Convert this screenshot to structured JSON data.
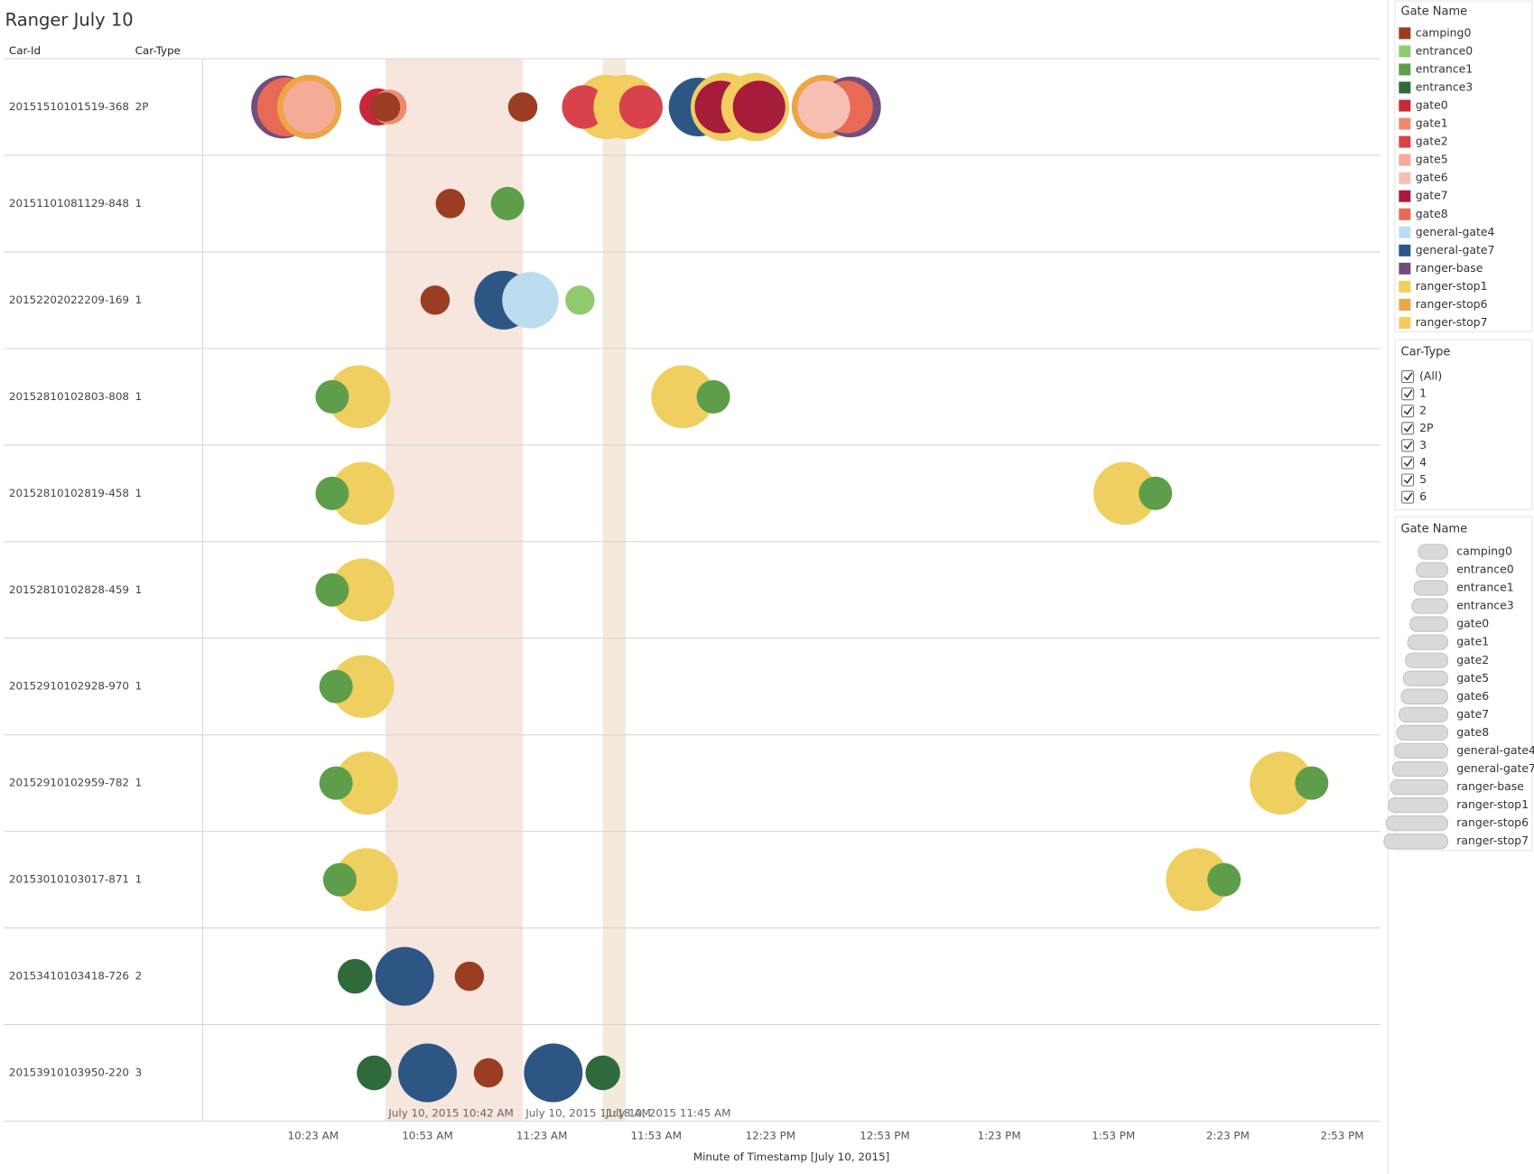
{
  "chart_data": {
    "type": "scatter",
    "title": "Ranger July 10",
    "row_headers": [
      "Car-Id",
      "Car-Type"
    ],
    "x_label": "Minute of Timestamp [July 10, 2015]",
    "xlim": [
      594,
      903
    ],
    "xticks": [
      {
        "value": 623,
        "label": "10:23 AM"
      },
      {
        "value": 653,
        "label": "10:53 AM"
      },
      {
        "value": 683,
        "label": "11:23 AM"
      },
      {
        "value": 713,
        "label": "11:53 AM"
      },
      {
        "value": 743,
        "label": "12:23 PM"
      },
      {
        "value": 773,
        "label": "12:53 PM"
      },
      {
        "value": 803,
        "label": "1:23 PM"
      },
      {
        "value": 833,
        "label": "1:53 PM"
      },
      {
        "value": 863,
        "label": "2:23 PM"
      },
      {
        "value": 893,
        "label": "2:53 PM"
      }
    ],
    "reference_bands": [
      {
        "start": 642,
        "end": 678,
        "color": "#f6e6dd",
        "label": "July 10, 2015 10:42 AM",
        "end_label": "July 10, 2015 11:18 AM"
      },
      {
        "start": 699,
        "end": 705,
        "color": "#f3eadb",
        "label": "July 10, 2015 11:45 AM"
      }
    ],
    "legend_title": "Gate Name",
    "series": [
      {
        "name": "camping0",
        "color": "#9b3d22"
      },
      {
        "name": "entrance0",
        "color": "#8fcb6e"
      },
      {
        "name": "entrance1",
        "color": "#5e9e4b"
      },
      {
        "name": "entrance3",
        "color": "#2f6b3a"
      },
      {
        "name": "gate0",
        "color": "#c8283a"
      },
      {
        "name": "gate1",
        "color": "#ee8a6e"
      },
      {
        "name": "gate2",
        "color": "#d9424a"
      },
      {
        "name": "gate5",
        "color": "#f4ab98"
      },
      {
        "name": "gate6",
        "color": "#f7bfb3"
      },
      {
        "name": "gate7",
        "color": "#a71b3b"
      },
      {
        "name": "gate8",
        "color": "#e86a55"
      },
      {
        "name": "general-gate4",
        "color": "#bcdcf0"
      },
      {
        "name": "general-gate7",
        "color": "#2e5685"
      },
      {
        "name": "ranger-base",
        "color": "#724e7e"
      },
      {
        "name": "ranger-stop1",
        "color": "#efcf5f"
      },
      {
        "name": "ranger-stop6",
        "color": "#eda546"
      },
      {
        "name": "ranger-stop7",
        "color": "#f3cd60"
      }
    ],
    "rows": [
      {
        "car_id": "20151510101519-368",
        "car_type": "2P",
        "x": [
          615,
          616,
          622,
          622,
          640,
          643,
          642,
          678,
          700,
          694,
          705,
          709,
          724,
          731,
          730,
          739,
          740,
          757,
          764,
          763,
          757
        ],
        "gate": [
          "ranger-base",
          "gate8",
          "ranger-stop6",
          "gate5",
          "gate0",
          "gate1",
          "camping0",
          "camping0",
          "ranger-stop1",
          "gate2",
          "ranger-stop7",
          "gate2",
          "general-gate7",
          "ranger-stop1",
          "gate7",
          "ranger-stop7",
          "gate7",
          "ranger-stop6",
          "ranger-base",
          "gate8",
          "gate6"
        ],
        "size": [
          4.6,
          4,
          4.8,
          3.2,
          1.6,
          1.4,
          1,
          1,
          4.8,
          2.2,
          4.8,
          2.2,
          4,
          5.4,
          3.2,
          5.4,
          3.2,
          4.8,
          4.3,
          3.2,
          3.2
        ]
      },
      {
        "car_id": "20151101081129-848",
        "car_type": "1",
        "x": [
          659,
          674
        ],
        "gate": [
          "camping0",
          "entrance1"
        ],
        "size": [
          1,
          1.3
        ]
      },
      {
        "car_id": "20152202022209-169",
        "car_type": "1",
        "x": [
          655,
          673,
          680,
          693
        ],
        "gate": [
          "camping0",
          "general-gate7",
          "general-gate4",
          "entrance0"
        ],
        "size": [
          1,
          4,
          3.7,
          1
        ]
      },
      {
        "car_id": "20152810102803-808",
        "car_type": "1",
        "x": [
          635,
          628,
          720,
          728
        ],
        "gate": [
          "ranger-stop1",
          "entrance1",
          "ranger-stop1",
          "entrance1"
        ],
        "size": [
          4.6,
          1.3,
          4.6,
          1.3
        ]
      },
      {
        "car_id": "20152810102819-458",
        "car_type": "1",
        "x": [
          636,
          628,
          836,
          844
        ],
        "gate": [
          "ranger-stop1",
          "entrance1",
          "ranger-stop1",
          "entrance1"
        ],
        "size": [
          4.6,
          1.3,
          4.6,
          1.3
        ]
      },
      {
        "car_id": "20152810102828-459",
        "car_type": "1",
        "x": [
          636,
          628
        ],
        "gate": [
          "ranger-stop1",
          "entrance1"
        ],
        "size": [
          4.6,
          1.3
        ]
      },
      {
        "car_id": "20152910102928-970",
        "car_type": "1",
        "x": [
          636,
          629
        ],
        "gate": [
          "ranger-stop1",
          "entrance1"
        ],
        "size": [
          4.6,
          1.3
        ]
      },
      {
        "car_id": "20152910102959-782",
        "car_type": "1",
        "x": [
          637,
          629,
          877,
          885
        ],
        "gate": [
          "ranger-stop1",
          "entrance1",
          "ranger-stop1",
          "entrance1"
        ],
        "size": [
          4.6,
          1.3,
          4.6,
          1.3
        ]
      },
      {
        "car_id": "20153010103017-871",
        "car_type": "1",
        "x": [
          637,
          630,
          855,
          862
        ],
        "gate": [
          "ranger-stop1",
          "entrance1",
          "ranger-stop1",
          "entrance1"
        ],
        "size": [
          4.6,
          1.3,
          4.6,
          1.3
        ]
      },
      {
        "car_id": "20153410103418-726",
        "car_type": "2",
        "x": [
          634,
          647,
          664
        ],
        "gate": [
          "entrance3",
          "general-gate7",
          "camping0"
        ],
        "size": [
          1.4,
          4,
          1
        ]
      },
      {
        "car_id": "20153910103950-220",
        "car_type": "3",
        "x": [
          639,
          653,
          669,
          686,
          699
        ],
        "gate": [
          "entrance3",
          "general-gate7",
          "camping0",
          "general-gate7",
          "entrance3"
        ],
        "size": [
          1.4,
          4,
          1,
          4,
          1.4
        ]
      }
    ],
    "car_type_filter": {
      "title": "Car-Type",
      "options": [
        "(All)",
        "1",
        "2",
        "2P",
        "3",
        "4",
        "5",
        "6"
      ]
    },
    "gate_highlighter": {
      "title": "Gate Name",
      "items": [
        "camping0",
        "entrance0",
        "entrance1",
        "entrance3",
        "gate0",
        "gate1",
        "gate2",
        "gate5",
        "gate6",
        "gate7",
        "gate8",
        "general-gate4",
        "general-gate7",
        "ranger-base",
        "ranger-stop1",
        "ranger-stop6",
        "ranger-stop7"
      ]
    }
  }
}
